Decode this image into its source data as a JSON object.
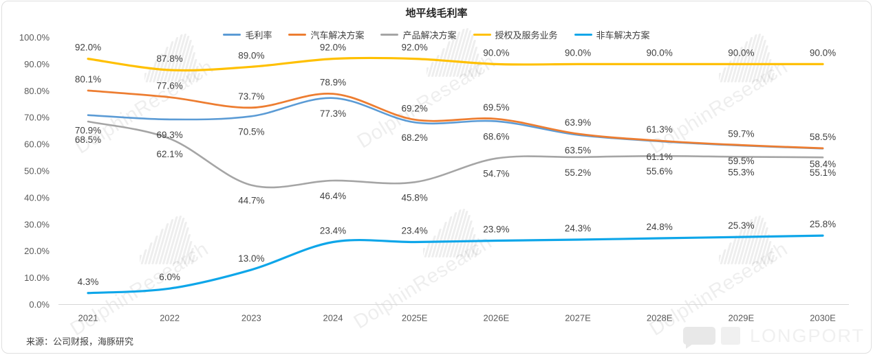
{
  "chart_data": {
    "type": "line",
    "title": "地平线毛利率",
    "categories": [
      "2021",
      "2022",
      "2023",
      "2024",
      "2025E",
      "2026E",
      "2027E",
      "2028E",
      "2029E",
      "2030E"
    ],
    "series": [
      {
        "name": "毛利率",
        "color": "#5B9BD5",
        "labels_position": "below",
        "values": [
          70.9,
          69.3,
          70.5,
          77.3,
          68.2,
          68.6,
          63.5,
          61.1,
          59.5,
          58.4
        ]
      },
      {
        "name": "汽车解决方案",
        "color": "#ED7D31",
        "labels_position": "above",
        "values": [
          80.1,
          77.6,
          73.7,
          78.9,
          69.2,
          69.5,
          63.9,
          61.3,
          59.7,
          58.5
        ]
      },
      {
        "name": "产品解决方案",
        "color": "#A5A5A5",
        "labels_position": "below",
        "values": [
          68.5,
          62.1,
          44.7,
          46.4,
          45.8,
          54.7,
          55.2,
          55.6,
          55.3,
          55.1
        ]
      },
      {
        "name": "授权及服务业务",
        "color": "#FFC000",
        "labels_position": "above",
        "values": [
          92.0,
          87.8,
          89.0,
          92.0,
          92.0,
          90.0,
          90.0,
          90.0,
          90.0,
          90.0
        ]
      },
      {
        "name": "非车解决方案",
        "color": "#0EA6E9",
        "labels_position": "above",
        "values": [
          4.3,
          6.0,
          13.0,
          23.4,
          23.4,
          23.9,
          24.3,
          24.8,
          25.3,
          25.8
        ]
      }
    ],
    "y_axis": {
      "min": 0,
      "max": 100,
      "step": 10,
      "tick_labels": [
        "0.0%",
        "10.0%",
        "20.0%",
        "30.0%",
        "40.0%",
        "50.0%",
        "60.0%",
        "70.0%",
        "80.0%",
        "90.0%",
        "100.0%"
      ]
    },
    "ylim": [
      0,
      100
    ],
    "grid": false,
    "legend_position": "top",
    "data_label_format": "0.0%"
  },
  "footer": {
    "source": "来源：公司财报，海豚研究"
  },
  "watermark": {
    "text": "DolphinResearch"
  },
  "brand": {
    "logo_text": "LONGPORT"
  }
}
